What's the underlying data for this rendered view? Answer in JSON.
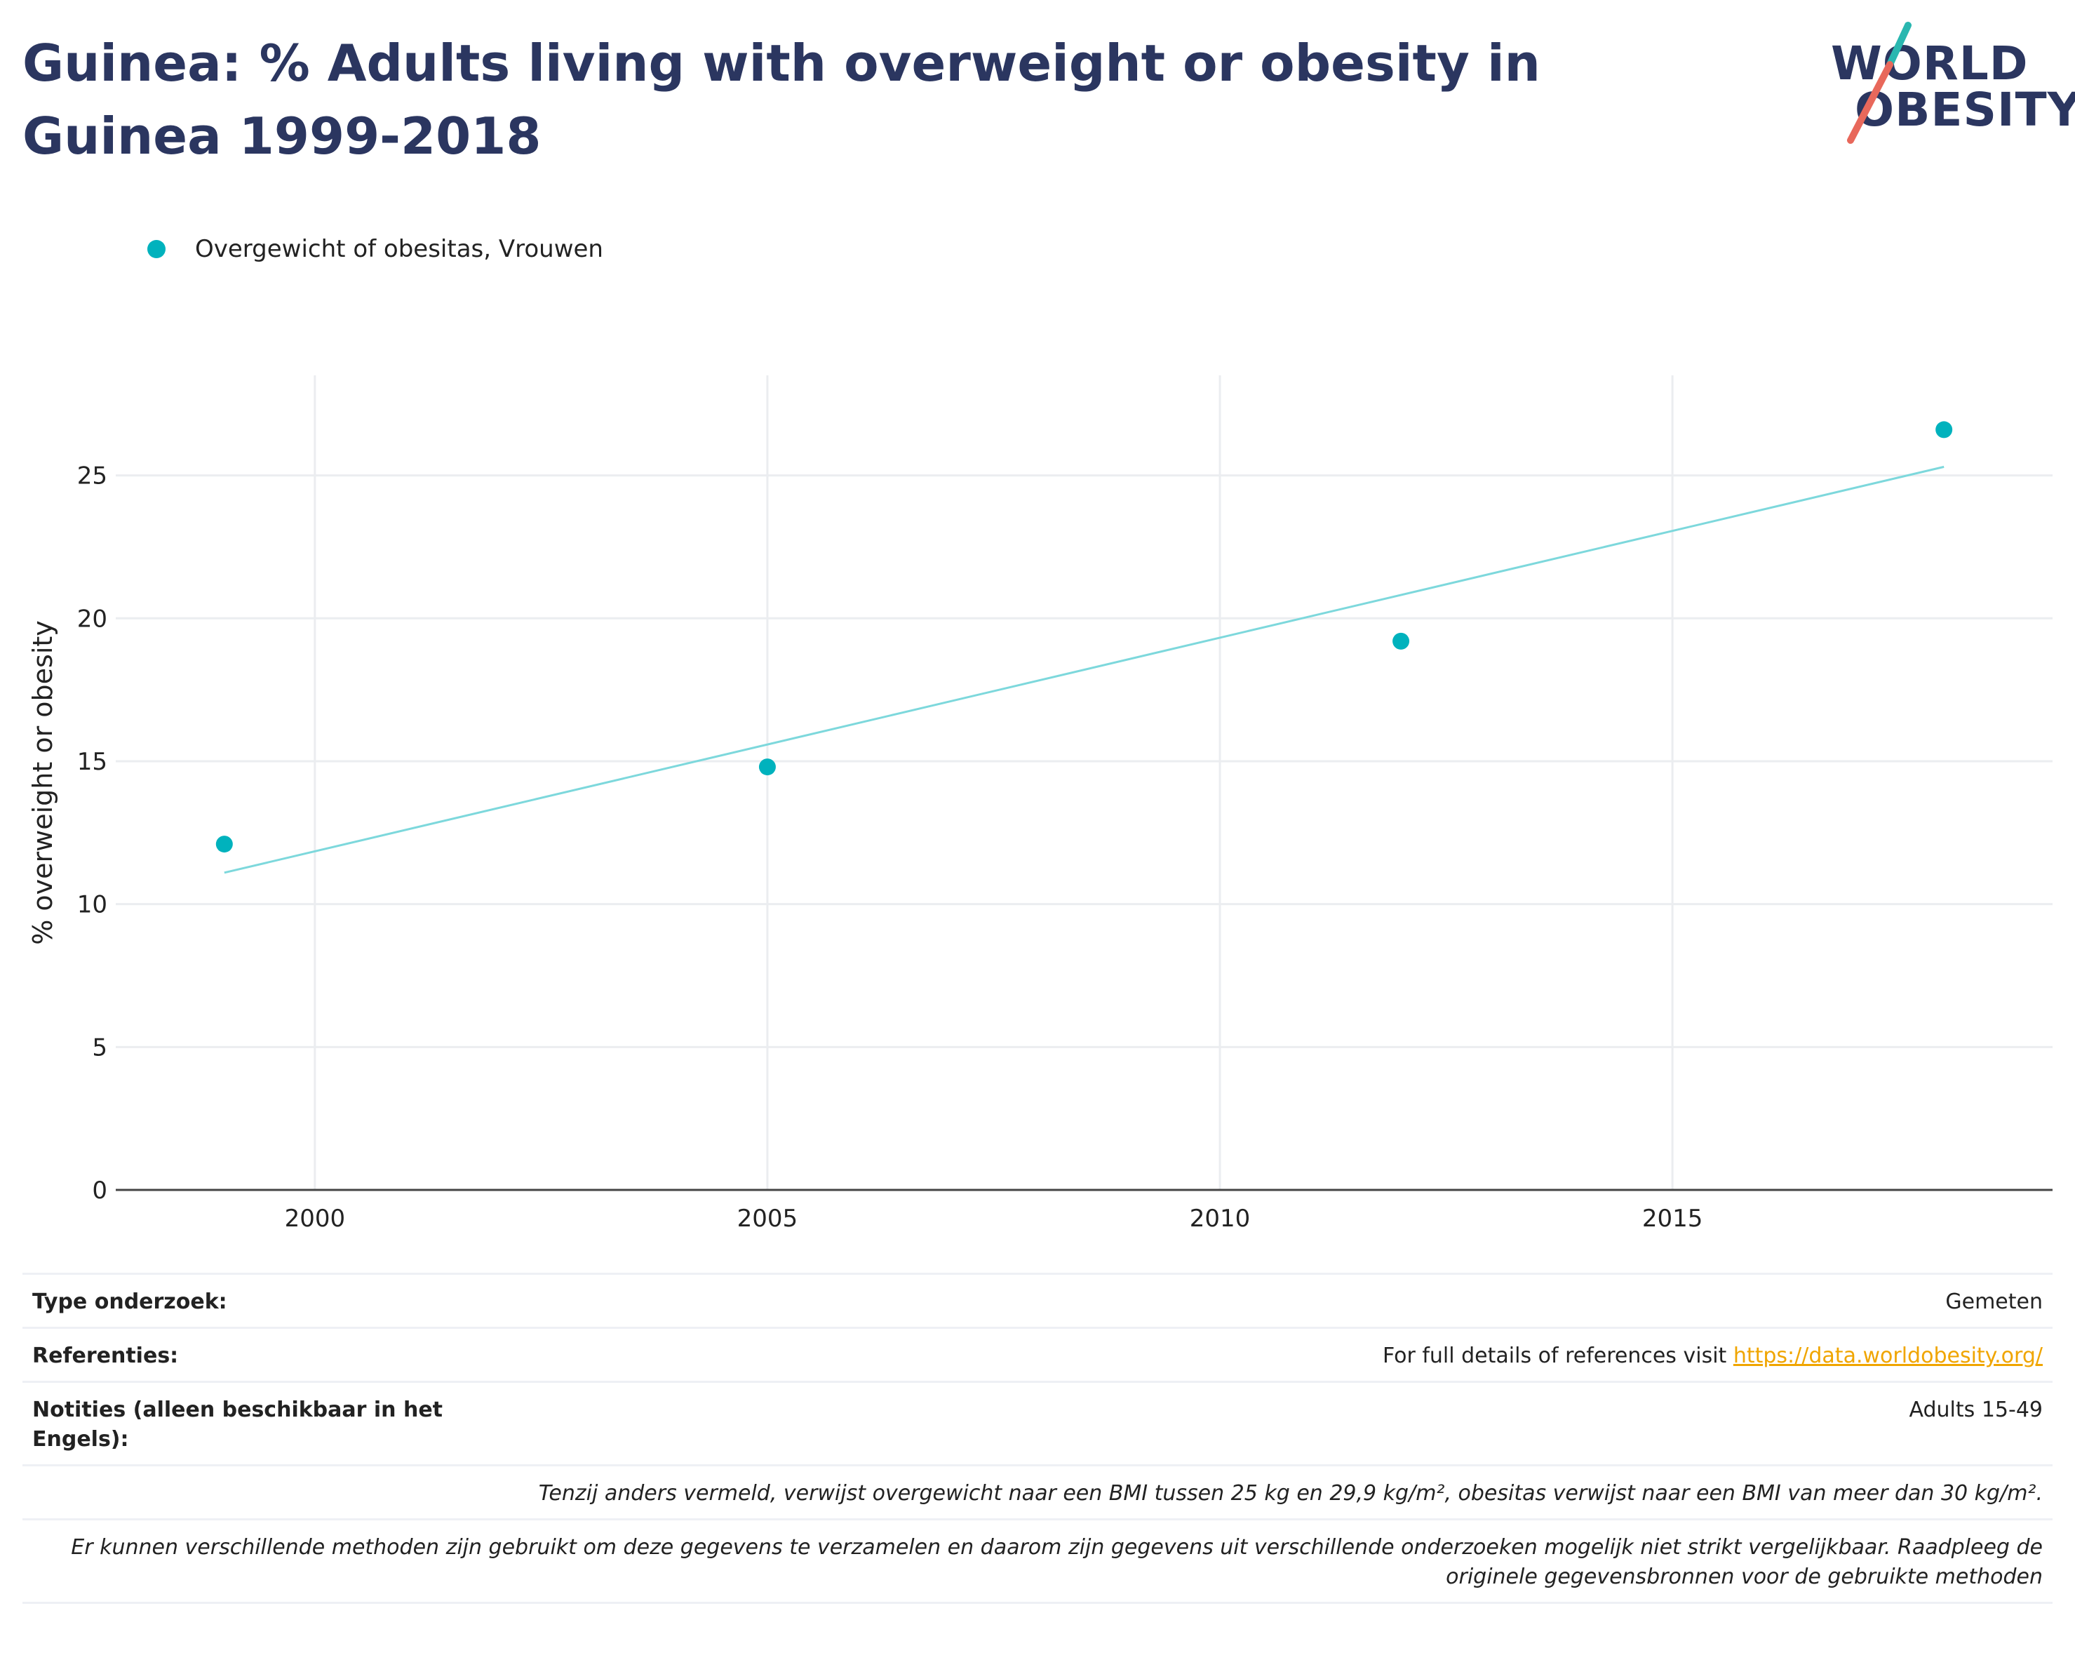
{
  "title": "Guinea: % Adults living with overweight or obesity in Guinea 1999-2018",
  "logo": {
    "line1": "WORLD",
    "line2": "OBESITY"
  },
  "colors": {
    "accent": "#00b2bd",
    "trend": "#7dd8dc",
    "title": "#2b3660",
    "link": "#f0a500",
    "logo_slash_teal": "#2ab7b0",
    "logo_slash_red": "#e8685b"
  },
  "chart_data": {
    "type": "scatter",
    "title": "Guinea: % Adults living with overweight or obesity in Guinea 1999-2018",
    "xlabel": "",
    "ylabel": "% overweight or obesity",
    "xlim": [
      1997.8,
      2019.2
    ],
    "ylim": [
      0,
      28.5
    ],
    "x_ticks": [
      2000,
      2005,
      2010,
      2015
    ],
    "y_ticks": [
      0,
      5,
      10,
      15,
      20,
      25
    ],
    "grid": true,
    "legend": "top-left",
    "series": [
      {
        "name": "Overgewicht of obesitas, Vrouwen",
        "x": [
          1999,
          2005,
          2012,
          2018
        ],
        "y": [
          12.1,
          14.8,
          19.2,
          26.6
        ]
      }
    ],
    "trendline": {
      "x": [
        1999,
        2018
      ],
      "y": [
        11.1,
        25.3
      ]
    }
  },
  "info": {
    "type_key": "Type onderzoek:",
    "type_value": "Gemeten",
    "ref_key": "Referenties:",
    "ref_text": "For full details of references visit ",
    "ref_link": "https://data.worldobesity.org/",
    "notes_key": "Notities (alleen beschikbaar in het Engels):",
    "notes_value": "Adults 15-49",
    "note1": "Tenzij anders vermeld, verwijst overgewicht naar een BMI tussen 25 kg en 29,9 kg/m², obesitas verwijst naar een BMI van meer dan 30 kg/m².",
    "note2": "Er kunnen verschillende methoden zijn gebruikt om deze gegevens te verzamelen en daarom zijn gegevens uit verschillende onderzoeken mogelijk niet strikt vergelijkbaar. Raadpleeg de originele gegevensbronnen voor de gebruikte methoden"
  }
}
